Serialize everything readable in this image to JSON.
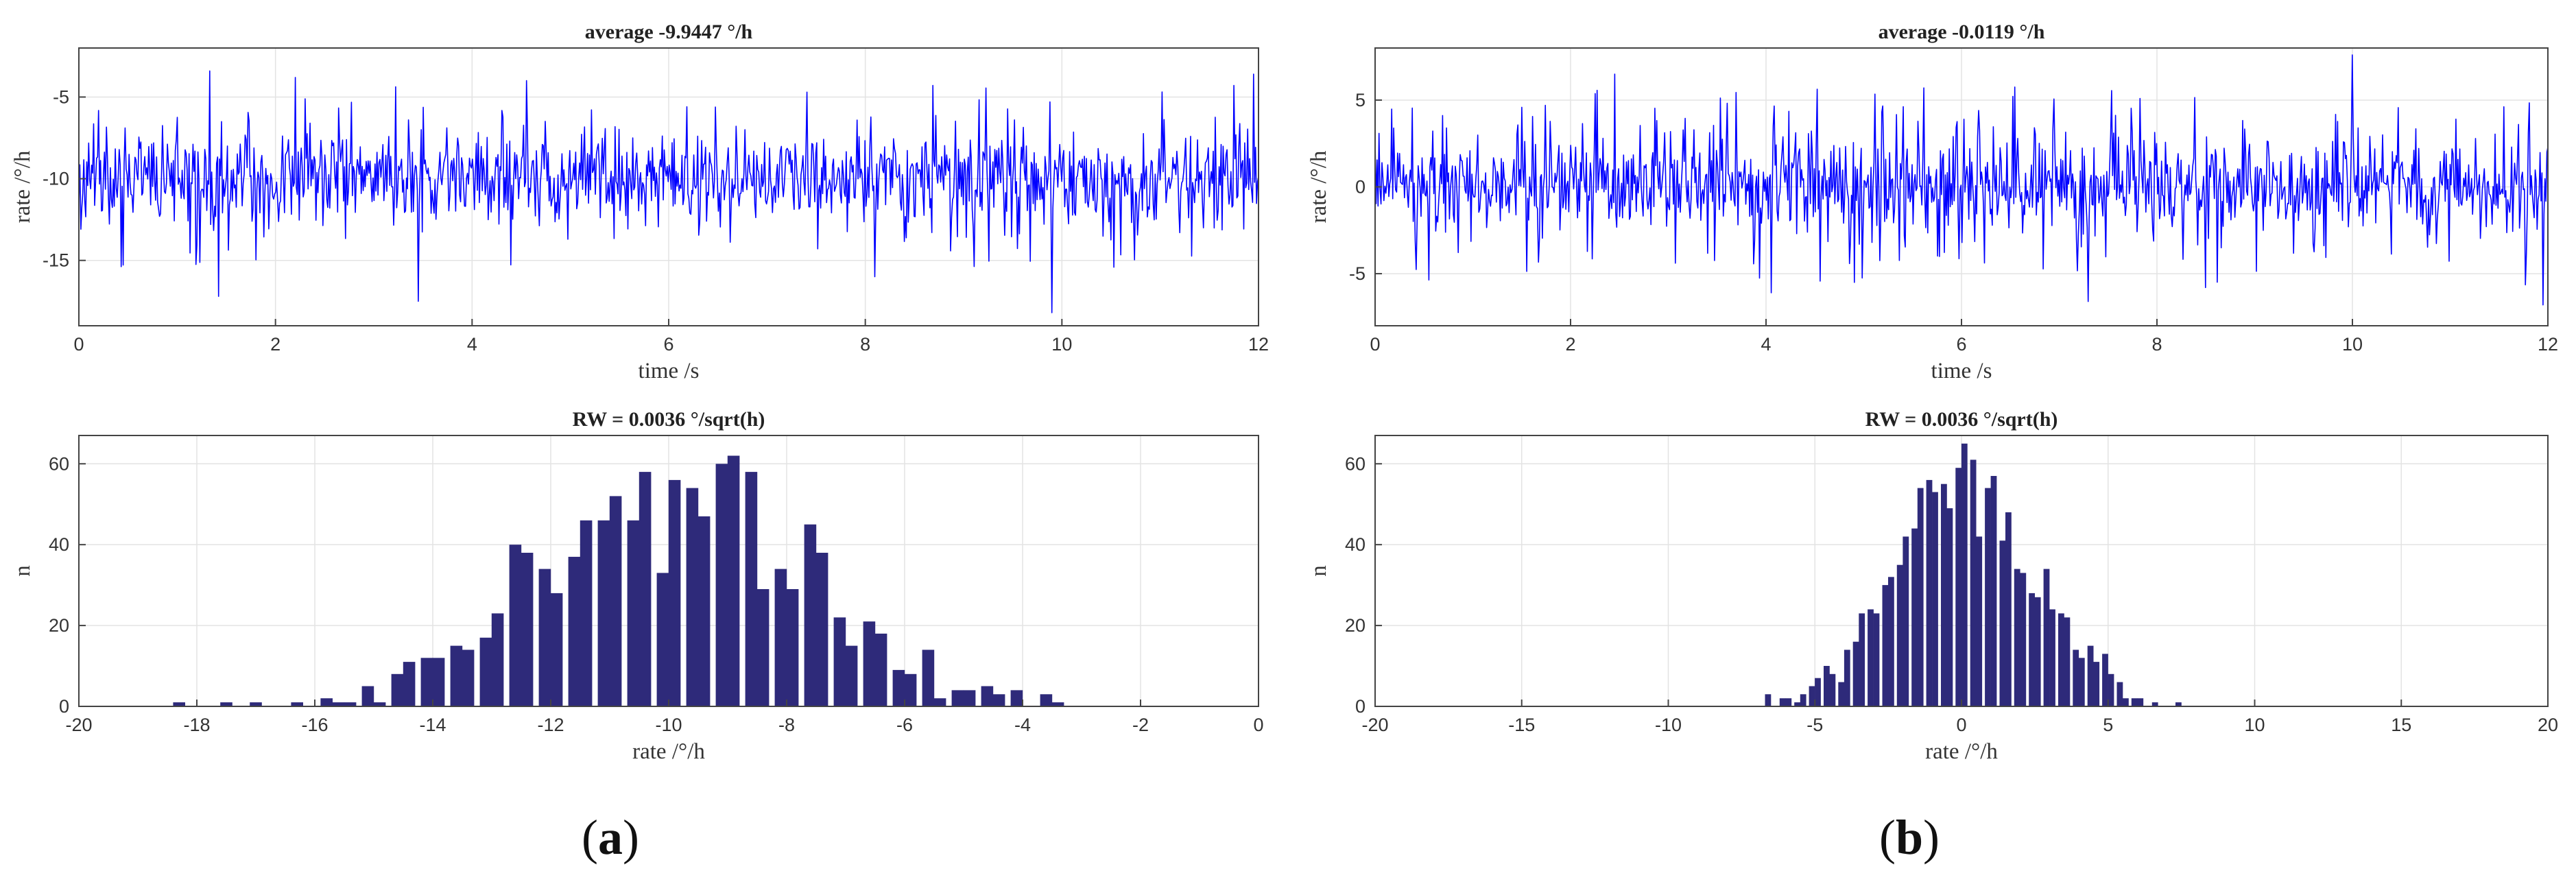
{
  "figure": {
    "panel_labels": {
      "a_open": "(",
      "a_letter": "a",
      "a_close": ")",
      "b_open": "(",
      "b_letter": "b",
      "b_close": ")"
    }
  },
  "chart_data": [
    {
      "id": "a-time",
      "type": "line",
      "title": "average -9.9447 °/h",
      "xlabel": "time /s",
      "ylabel": "rate /°/h",
      "xlim": [
        0,
        12
      ],
      "ylim": [
        -19,
        -2
      ],
      "xticks": [
        0,
        2,
        4,
        6,
        8,
        10,
        12
      ],
      "yticks": [
        -15,
        -10,
        -5
      ],
      "grid": true,
      "color": "#0000ff",
      "noise": {
        "n": 1200,
        "mean": -10.0,
        "sd": 1.4,
        "seed": 11
      },
      "peaks": [
        [
          1.33,
          -3.4
        ],
        [
          1.42,
          -17.2
        ],
        [
          3.45,
          -17.5
        ],
        [
          9.9,
          -18.2
        ],
        [
          11.95,
          -3.6
        ],
        [
          2.2,
          -3.8
        ],
        [
          4.55,
          -4.0
        ],
        [
          8.1,
          -16.0
        ]
      ]
    },
    {
      "id": "b-time",
      "type": "line",
      "title": "average -0.0119 °/h",
      "xlabel": "time /s",
      "ylabel": "rate /°/h",
      "xlim": [
        0,
        12
      ],
      "ylim": [
        -8,
        8
      ],
      "xticks": [
        0,
        2,
        4,
        6,
        8,
        10,
        12
      ],
      "yticks": [
        -5,
        0,
        5
      ],
      "grid": true,
      "color": "#0000ff",
      "noise": {
        "n": 1200,
        "mean": 0.0,
        "sd": 1.4,
        "seed": 23
      },
      "peaks": [
        [
          10.0,
          7.6
        ],
        [
          2.45,
          6.5
        ],
        [
          4.05,
          -6.1
        ],
        [
          11.95,
          -6.8
        ],
        [
          8.5,
          -5.8
        ],
        [
          7.3,
          -6.6
        ]
      ]
    },
    {
      "id": "a-hist",
      "type": "bar",
      "title": "RW = 0.0036 °/sqrt(h)",
      "xlabel": "rate /°/h",
      "ylabel": "n",
      "xlim": [
        -20,
        0
      ],
      "ylim": [
        0,
        67
      ],
      "xticks": [
        -20,
        -18,
        -16,
        -14,
        -12,
        -10,
        -8,
        -6,
        -4,
        -2,
        0
      ],
      "yticks": [
        0,
        20,
        40,
        60
      ],
      "grid": true,
      "color": "#2e2a7a",
      "bin_width": 0.25,
      "bins": [
        [
          -18.3,
          1
        ],
        [
          -17.5,
          1
        ],
        [
          -17.0,
          1
        ],
        [
          -16.3,
          1
        ],
        [
          -15.8,
          2
        ],
        [
          -15.6,
          1
        ],
        [
          -15.4,
          1
        ],
        [
          -15.1,
          5
        ],
        [
          -14.9,
          1
        ],
        [
          -14.6,
          8
        ],
        [
          -14.4,
          11
        ],
        [
          -14.1,
          12
        ],
        [
          -13.9,
          12
        ],
        [
          -13.6,
          15
        ],
        [
          -13.4,
          14
        ],
        [
          -13.1,
          17
        ],
        [
          -12.9,
          23
        ],
        [
          -12.6,
          40
        ],
        [
          -12.4,
          38
        ],
        [
          -12.1,
          34
        ],
        [
          -11.9,
          28
        ],
        [
          -11.6,
          37
        ],
        [
          -11.4,
          46
        ],
        [
          -11.1,
          46
        ],
        [
          -10.9,
          52
        ],
        [
          -10.6,
          46
        ],
        [
          -10.4,
          58
        ],
        [
          -10.1,
          33
        ],
        [
          -9.9,
          56
        ],
        [
          -9.6,
          54
        ],
        [
          -9.4,
          47
        ],
        [
          -9.1,
          60
        ],
        [
          -8.9,
          62
        ],
        [
          -8.6,
          58
        ],
        [
          -8.4,
          29
        ],
        [
          -8.1,
          34
        ],
        [
          -7.9,
          29
        ],
        [
          -7.6,
          45
        ],
        [
          -7.4,
          38
        ],
        [
          -7.1,
          22
        ],
        [
          -6.9,
          15
        ],
        [
          -6.6,
          21
        ],
        [
          -6.4,
          18
        ],
        [
          -6.1,
          9
        ],
        [
          -5.9,
          8
        ],
        [
          -5.6,
          14
        ],
        [
          -5.4,
          2
        ],
        [
          -5.1,
          4
        ],
        [
          -4.9,
          4
        ],
        [
          -4.6,
          5
        ],
        [
          -4.4,
          3
        ],
        [
          -4.1,
          4
        ],
        [
          -3.6,
          3
        ],
        [
          -3.4,
          1
        ]
      ]
    },
    {
      "id": "b-hist",
      "type": "bar",
      "title": "RW = 0.0036 °/sqrt(h)",
      "xlabel": "rate /°/h",
      "ylabel": "n",
      "xlim": [
        -20,
        20
      ],
      "ylim": [
        0,
        67
      ],
      "xticks": [
        -20,
        -15,
        -10,
        -5,
        0,
        5,
        10,
        15,
        20
      ],
      "yticks": [
        0,
        20,
        40,
        60
      ],
      "grid": true,
      "color": "#2e2a7a",
      "bin_width": 0.25,
      "bins": [
        [
          -6.6,
          3
        ],
        [
          -6.1,
          2
        ],
        [
          -5.9,
          2
        ],
        [
          -5.6,
          1
        ],
        [
          -5.4,
          3
        ],
        [
          -5.1,
          5
        ],
        [
          -4.9,
          7
        ],
        [
          -4.6,
          10
        ],
        [
          -4.4,
          8
        ],
        [
          -4.1,
          6
        ],
        [
          -3.9,
          14
        ],
        [
          -3.6,
          16
        ],
        [
          -3.4,
          23
        ],
        [
          -3.1,
          24
        ],
        [
          -2.9,
          23
        ],
        [
          -2.6,
          30
        ],
        [
          -2.4,
          32
        ],
        [
          -2.1,
          35
        ],
        [
          -1.9,
          42
        ],
        [
          -1.6,
          44
        ],
        [
          -1.4,
          54
        ],
        [
          -1.1,
          56
        ],
        [
          -0.9,
          53
        ],
        [
          -0.6,
          55
        ],
        [
          -0.4,
          49
        ],
        [
          -0.1,
          59
        ],
        [
          0.1,
          65
        ],
        [
          0.4,
          61
        ],
        [
          0.6,
          42
        ],
        [
          0.9,
          54
        ],
        [
          1.1,
          57
        ],
        [
          1.4,
          41
        ],
        [
          1.6,
          48
        ],
        [
          1.9,
          34
        ],
        [
          2.1,
          33
        ],
        [
          2.4,
          28
        ],
        [
          2.6,
          27
        ],
        [
          2.9,
          34
        ],
        [
          3.1,
          24
        ],
        [
          3.4,
          23
        ],
        [
          3.6,
          22
        ],
        [
          3.9,
          14
        ],
        [
          4.1,
          12
        ],
        [
          4.4,
          15
        ],
        [
          4.6,
          11
        ],
        [
          4.9,
          13
        ],
        [
          5.1,
          8
        ],
        [
          5.4,
          6
        ],
        [
          5.6,
          2
        ],
        [
          5.9,
          2
        ],
        [
          6.1,
          2
        ],
        [
          6.6,
          1
        ],
        [
          7.4,
          1
        ]
      ]
    }
  ]
}
